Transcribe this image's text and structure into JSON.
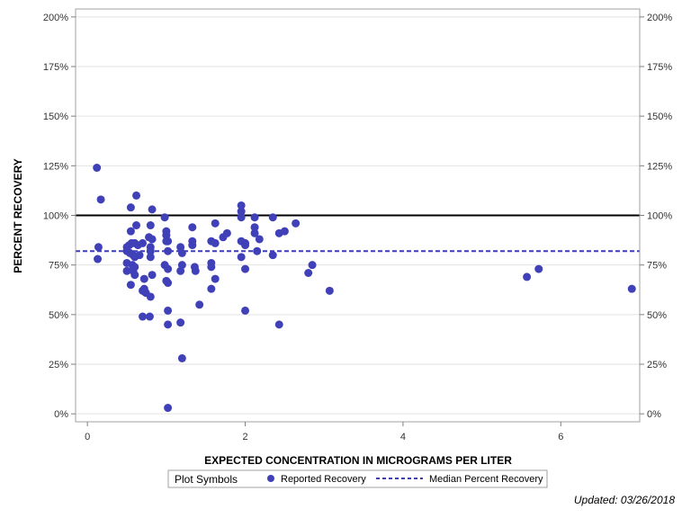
{
  "chart_data": {
    "type": "scatter",
    "title": "",
    "xlabel": "EXPECTED CONCENTRATION IN MICROGRAMS PER LITER",
    "ylabel": "PERCENT RECOVERY",
    "xlim": [
      -0.15,
      7.0
    ],
    "ylim": [
      -4,
      204
    ],
    "x_ticks": [
      0,
      2,
      4,
      6
    ],
    "x_tick_labels": [
      "0",
      "2",
      "4",
      "6"
    ],
    "y_ticks": [
      0,
      25,
      50,
      75,
      100,
      125,
      150,
      175,
      200
    ],
    "y_tick_labels": [
      "0%",
      "25%",
      "50%",
      "75%",
      "100%",
      "125%",
      "150%",
      "175%",
      "200%"
    ],
    "grid": "horizontal",
    "reference_lines": [
      {
        "name": "100 Percent",
        "y": 100,
        "color": "#000000",
        "style": "solid"
      },
      {
        "name": "Median Percent Recovery",
        "y": 82,
        "color": "#3c3cb4",
        "style": "dashed"
      }
    ],
    "series": [
      {
        "name": "Reported Recovery",
        "color": "#4040b8",
        "points": [
          [
            0.12,
            124
          ],
          [
            0.17,
            108
          ],
          [
            0.14,
            84
          ],
          [
            0.13,
            78
          ],
          [
            0.55,
            104
          ],
          [
            0.62,
            110
          ],
          [
            0.55,
            92
          ],
          [
            0.62,
            95
          ],
          [
            0.5,
            84
          ],
          [
            0.53,
            85
          ],
          [
            0.56,
            86
          ],
          [
            0.6,
            86
          ],
          [
            0.64,
            85
          ],
          [
            0.5,
            82
          ],
          [
            0.54,
            81
          ],
          [
            0.58,
            80
          ],
          [
            0.6,
            79
          ],
          [
            0.66,
            80
          ],
          [
            0.5,
            76
          ],
          [
            0.57,
            75
          ],
          [
            0.6,
            74
          ],
          [
            0.5,
            72
          ],
          [
            0.58,
            72
          ],
          [
            0.6,
            70
          ],
          [
            0.55,
            65
          ],
          [
            0.7,
            86
          ],
          [
            0.72,
            68
          ],
          [
            0.72,
            63
          ],
          [
            0.7,
            62
          ],
          [
            0.74,
            61
          ],
          [
            0.8,
            59
          ],
          [
            0.7,
            49
          ],
          [
            0.79,
            49
          ],
          [
            0.82,
            103
          ],
          [
            0.8,
            95
          ],
          [
            0.78,
            89
          ],
          [
            0.82,
            88
          ],
          [
            0.8,
            84
          ],
          [
            0.8,
            82
          ],
          [
            0.8,
            79
          ],
          [
            0.82,
            70
          ],
          [
            0.98,
            99
          ],
          [
            1.0,
            92
          ],
          [
            1.0,
            90
          ],
          [
            1.02,
            87
          ],
          [
            1.0,
            87
          ],
          [
            1.02,
            82
          ],
          [
            0.98,
            75
          ],
          [
            1.02,
            73
          ],
          [
            1.0,
            67
          ],
          [
            1.02,
            66
          ],
          [
            1.02,
            52
          ],
          [
            1.02,
            45
          ],
          [
            1.02,
            3
          ],
          [
            1.18,
            84
          ],
          [
            1.2,
            81
          ],
          [
            1.2,
            75
          ],
          [
            1.18,
            72
          ],
          [
            1.18,
            46
          ],
          [
            1.2,
            28
          ],
          [
            1.33,
            94
          ],
          [
            1.33,
            87
          ],
          [
            1.33,
            85
          ],
          [
            1.36,
            74
          ],
          [
            1.37,
            72
          ],
          [
            1.42,
            55
          ],
          [
            1.57,
            87
          ],
          [
            1.62,
            86
          ],
          [
            1.57,
            76
          ],
          [
            1.57,
            74
          ],
          [
            1.62,
            68
          ],
          [
            1.57,
            63
          ],
          [
            1.62,
            96
          ],
          [
            1.72,
            89
          ],
          [
            1.77,
            91
          ],
          [
            1.95,
            105
          ],
          [
            1.95,
            102
          ],
          [
            1.95,
            99
          ],
          [
            1.95,
            87
          ],
          [
            1.95,
            79
          ],
          [
            2.0,
            86
          ],
          [
            2.0,
            85
          ],
          [
            2.0,
            73
          ],
          [
            2.0,
            52
          ],
          [
            2.12,
            99
          ],
          [
            2.12,
            94
          ],
          [
            2.12,
            91
          ],
          [
            2.18,
            88
          ],
          [
            2.15,
            82
          ],
          [
            2.35,
            99
          ],
          [
            2.35,
            80
          ],
          [
            2.43,
            91
          ],
          [
            2.5,
            92
          ],
          [
            2.43,
            45
          ],
          [
            2.64,
            96
          ],
          [
            2.8,
            71
          ],
          [
            2.85,
            75
          ],
          [
            3.07,
            62
          ],
          [
            5.57,
            69
          ],
          [
            5.72,
            73
          ],
          [
            6.9,
            63
          ]
        ]
      }
    ],
    "legend": {
      "title": "Plot Symbols",
      "placement": "bottom",
      "items": [
        {
          "label": "Reported Recovery",
          "kind": "marker"
        },
        {
          "label": "Median Percent Recovery",
          "kind": "dashed-line"
        }
      ]
    }
  },
  "footnote": "Updated: 03/26/2018"
}
